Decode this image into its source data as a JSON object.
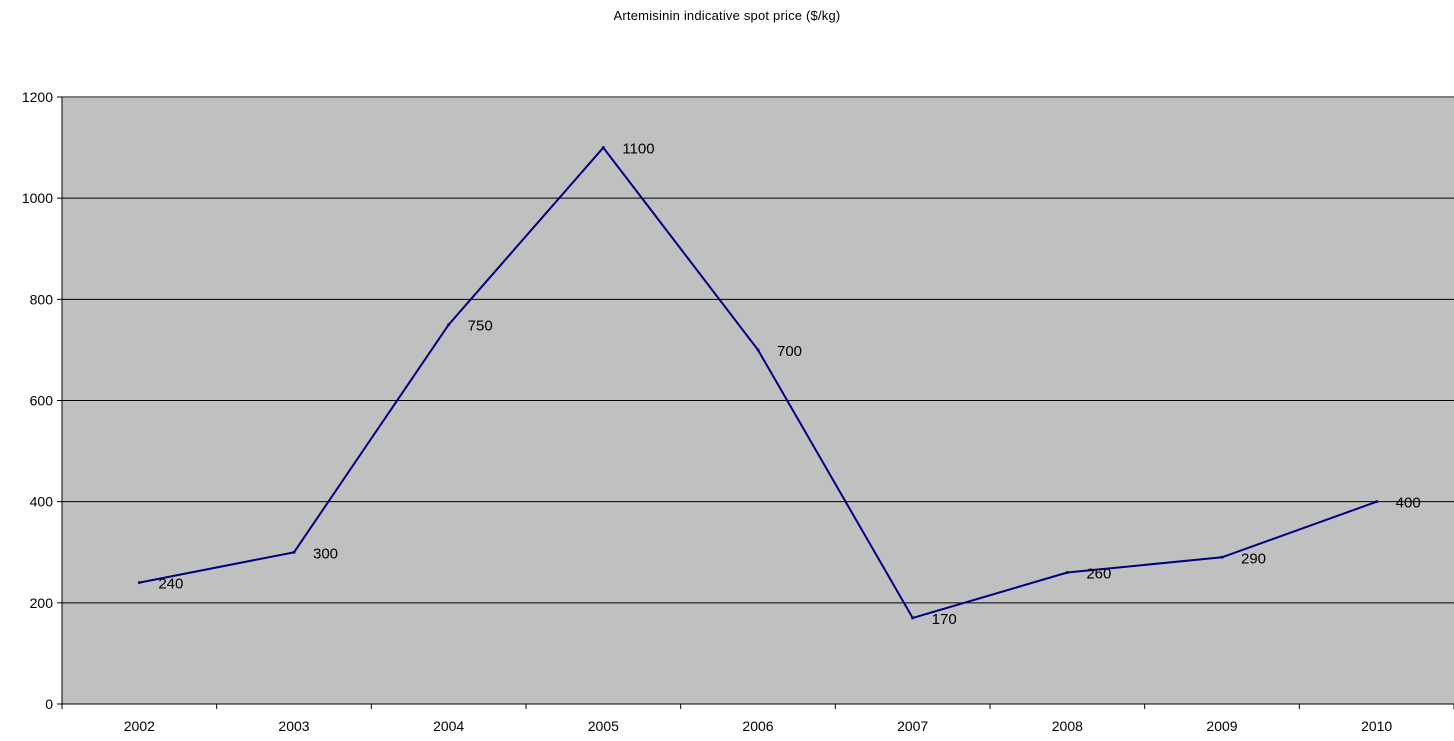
{
  "chart_data": {
    "type": "line",
    "title": "Artemisinin indicative spot price ($/kg)",
    "xlabel": "",
    "ylabel": "",
    "categories": [
      "2002",
      "2003",
      "2004",
      "2005",
      "2006",
      "2007",
      "2008",
      "2009",
      "2010"
    ],
    "series": [
      {
        "values": [
          240,
          300,
          750,
          1100,
          700,
          170,
          260,
          290,
          400
        ]
      }
    ],
    "data_labels": [
      "240",
      "300",
      "750",
      "1100",
      "700",
      "170",
      "260",
      "290",
      "400"
    ],
    "ylim": [
      0,
      1200
    ],
    "yticks": [
      0,
      200,
      400,
      600,
      800,
      1000,
      1200
    ],
    "ytick_labels": [
      "0",
      "200",
      "400",
      "600",
      "800",
      "1000",
      "1200"
    ],
    "grid": true,
    "legend": "none",
    "colors": {
      "line": "#000080",
      "plot_background": "#c0c0c0",
      "gridline": "#000000"
    }
  }
}
